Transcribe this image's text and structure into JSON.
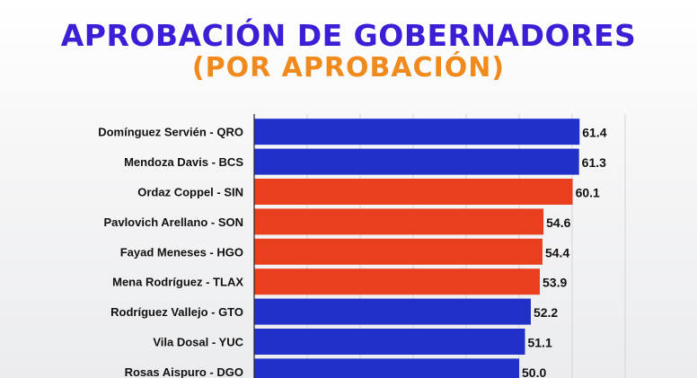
{
  "header": {
    "title": "APROBACIÓN DE GOBERNADORES",
    "subtitle": "(POR APROBACIÓN)"
  },
  "colors": {
    "title": "#3a1fd6",
    "subtitle": "#f08a1c",
    "blue_bar": "#2030c8",
    "red_bar": "#e8401e",
    "grid": "#d4d4d8",
    "axis": "#222222"
  },
  "chart_data": {
    "type": "bar",
    "orientation": "horizontal",
    "categories": [
      "Domínguez Servién - QRO",
      "Mendoza Davis - BCS",
      "Ordaz Coppel - SIN",
      "Pavlovich Arellano - SON",
      "Fayad Meneses - HGO",
      "Mena Rodríguez - TLAX",
      "Rodríguez Vallejo - GTO",
      "Vila Dosal - YUC",
      "Rosas Aispuro - DGO"
    ],
    "values": [
      61.4,
      61.3,
      60.1,
      54.6,
      54.4,
      53.9,
      52.2,
      51.1,
      50.0
    ],
    "value_labels": [
      "61.4",
      "61.3",
      "60.1",
      "54.6",
      "54.4",
      "53.9",
      "52.2",
      "51.1",
      "50.0"
    ],
    "bar_colors": [
      "#2030c8",
      "#2030c8",
      "#e8401e",
      "#e8401e",
      "#e8401e",
      "#e8401e",
      "#2030c8",
      "#2030c8",
      "#2030c8"
    ],
    "title": "APROBACIÓN DE GOBERNADORES",
    "subtitle": "(POR APROBACIÓN)",
    "xlabel": "",
    "ylabel": "",
    "xlim": [
      0,
      70
    ],
    "grid": true
  }
}
